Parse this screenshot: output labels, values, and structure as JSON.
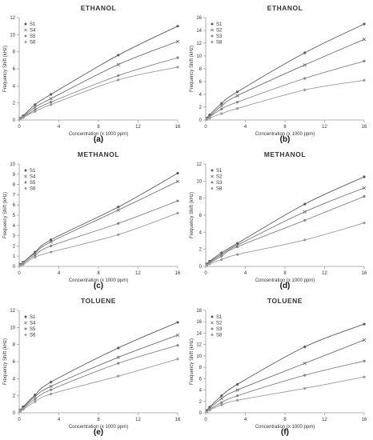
{
  "figure": {
    "title": "",
    "subtitle": ""
  },
  "chart_data": [
    {
      "type": "scatter",
      "title": "ETHANOL",
      "panel_label": "(a)",
      "xlabel": "Concentration (x 1000 ppm)",
      "ylabel": "Frequency Shift (kHz)",
      "xlim": [
        0,
        16
      ],
      "ylim": [
        0,
        12
      ],
      "xticks": [
        0,
        4,
        8,
        12,
        16
      ],
      "yticks": [
        0,
        2,
        4,
        6,
        8,
        10,
        12
      ],
      "legend": "top-left",
      "grid": false,
      "fit": "curve",
      "series": [
        {
          "name": "S1",
          "x": [
            0,
            0.1,
            0.4,
            1.6,
            3.2,
            10,
            16
          ],
          "y": [
            0,
            0.2,
            0.5,
            1.8,
            3.0,
            7.6,
            11.0
          ]
        },
        {
          "name": "S4",
          "x": [
            0,
            0.1,
            0.4,
            1.6,
            3.2,
            10,
            16
          ],
          "y": [
            0,
            0.2,
            0.4,
            1.5,
            2.5,
            6.5,
            9.2
          ]
        },
        {
          "name": "S5",
          "x": [
            0,
            0.1,
            0.4,
            1.6,
            3.2,
            10,
            16
          ],
          "y": [
            0,
            0.1,
            0.3,
            1.2,
            2.1,
            5.2,
            7.3
          ]
        },
        {
          "name": "S6",
          "x": [
            0,
            0.1,
            0.4,
            1.6,
            3.2,
            10,
            16
          ],
          "y": [
            0,
            0.1,
            0.3,
            1.0,
            1.8,
            4.7,
            6.2
          ]
        }
      ]
    },
    {
      "type": "scatter",
      "title": "ETHANOL",
      "panel_label": "(b)",
      "xlabel": "Concentration (x 1000 ppm)",
      "ylabel": "Frequency Shift (kHz)",
      "xlim": [
        0,
        16
      ],
      "ylim": [
        0,
        16
      ],
      "xticks": [
        0,
        4,
        8,
        12,
        16
      ],
      "yticks": [
        0,
        2,
        4,
        6,
        8,
        10,
        12,
        14,
        16
      ],
      "legend": "top-left",
      "grid": false,
      "fit": "curve",
      "series": [
        {
          "name": "S1",
          "x": [
            0,
            0.1,
            0.4,
            1.6,
            3.2,
            10,
            16
          ],
          "y": [
            0,
            0.3,
            0.8,
            2.6,
            4.4,
            10.5,
            15.0
          ]
        },
        {
          "name": "S2",
          "x": [
            0,
            0.1,
            0.4,
            1.6,
            3.2,
            10,
            16
          ],
          "y": [
            0,
            0.2,
            0.6,
            2.2,
            3.8,
            8.6,
            12.6
          ]
        },
        {
          "name": "S3",
          "x": [
            0,
            0.1,
            0.4,
            1.6,
            3.2,
            10,
            16
          ],
          "y": [
            0,
            0.2,
            0.5,
            1.7,
            2.8,
            6.5,
            9.2
          ]
        },
        {
          "name": "S8",
          "x": [
            0,
            0.1,
            0.4,
            1.6,
            3.2,
            10,
            16
          ],
          "y": [
            0,
            0.1,
            0.3,
            1.0,
            1.8,
            4.7,
            6.2
          ]
        }
      ]
    },
    {
      "type": "scatter",
      "title": "METHANOL",
      "panel_label": "(c)",
      "xlabel": "Concentration (x 1000 ppm)",
      "ylabel": "Frequency Shift (kHz)",
      "xlim": [
        0,
        16
      ],
      "ylim": [
        0,
        10
      ],
      "xticks": [
        0,
        4,
        8,
        12,
        16
      ],
      "yticks": [
        0,
        1,
        2,
        3,
        4,
        5,
        6,
        7,
        8,
        9,
        10
      ],
      "legend": "top-left",
      "grid": false,
      "fit": "curve",
      "series": [
        {
          "name": "S1",
          "x": [
            0,
            0.1,
            0.4,
            1.6,
            3.2,
            10,
            16
          ],
          "y": [
            0,
            0.2,
            0.4,
            1.4,
            2.6,
            5.8,
            9.1
          ]
        },
        {
          "name": "S4",
          "x": [
            0,
            0.1,
            0.4,
            1.6,
            3.2,
            10,
            16
          ],
          "y": [
            0,
            0.2,
            0.4,
            1.3,
            2.4,
            5.5,
            8.3
          ]
        },
        {
          "name": "S5",
          "x": [
            0,
            0.1,
            0.4,
            1.6,
            3.2,
            10,
            16
          ],
          "y": [
            0,
            0.1,
            0.3,
            1.1,
            2.0,
            4.2,
            6.4
          ]
        },
        {
          "name": "S6",
          "x": [
            0,
            0.1,
            0.4,
            1.6,
            3.2,
            10,
            16
          ],
          "y": [
            0,
            0.1,
            0.2,
            0.9,
            1.4,
            3.1,
            5.2
          ]
        }
      ]
    },
    {
      "type": "scatter",
      "title": "METHANOL",
      "panel_label": "(d)",
      "xlabel": "Concentration (x 1000 ppm)",
      "ylabel": "Frequency Shift (kHz)",
      "xlim": [
        0,
        16
      ],
      "ylim": [
        0,
        12
      ],
      "xticks": [
        0,
        4,
        8,
        12,
        16
      ],
      "yticks": [
        0,
        2,
        4,
        6,
        8,
        10,
        12
      ],
      "legend": "top-left",
      "grid": false,
      "fit": "curve",
      "series": [
        {
          "name": "S1",
          "x": [
            0,
            0.1,
            0.4,
            1.6,
            3.2,
            10,
            16
          ],
          "y": [
            0,
            0.3,
            0.6,
            1.6,
            2.7,
            7.3,
            10.5
          ]
        },
        {
          "name": "S2",
          "x": [
            0,
            0.1,
            0.4,
            1.6,
            3.2,
            10,
            16
          ],
          "y": [
            0,
            0.2,
            0.5,
            1.4,
            2.5,
            6.4,
            9.2
          ]
        },
        {
          "name": "S3",
          "x": [
            0,
            0.1,
            0.4,
            1.6,
            3.2,
            10,
            16
          ],
          "y": [
            0,
            0.2,
            0.4,
            1.2,
            2.3,
            5.4,
            8.2
          ]
        },
        {
          "name": "S8",
          "x": [
            0,
            0.1,
            0.4,
            1.6,
            3.2,
            10,
            16
          ],
          "y": [
            0,
            0.1,
            0.3,
            0.8,
            1.4,
            3.1,
            5.1
          ]
        }
      ]
    },
    {
      "type": "scatter",
      "title": "TOLUENE",
      "panel_label": "(e)",
      "xlabel": "Concentration (x 1000 ppm)",
      "ylabel": "Frequency Shift (kHz)",
      "xlim": [
        0,
        16
      ],
      "ylim": [
        0,
        12
      ],
      "xticks": [
        0,
        4,
        8,
        12,
        16
      ],
      "yticks": [
        0,
        2,
        4,
        6,
        8,
        10,
        12
      ],
      "legend": "top-left",
      "grid": false,
      "fit": "curve",
      "series": [
        {
          "name": "S1",
          "x": [
            0,
            0.1,
            0.4,
            1.6,
            3.2,
            10,
            16
          ],
          "y": [
            0,
            0.3,
            0.7,
            2.1,
            3.6,
            7.6,
            10.6
          ]
        },
        {
          "name": "S4",
          "x": [
            0,
            0.1,
            0.4,
            1.6,
            3.2,
            10,
            16
          ],
          "y": [
            0,
            0.3,
            0.6,
            1.9,
            3.1,
            6.5,
            9.1
          ]
        },
        {
          "name": "S5",
          "x": [
            0,
            0.1,
            0.4,
            1.6,
            3.2,
            10,
            16
          ],
          "y": [
            0,
            0.2,
            0.5,
            1.6,
            2.7,
            5.8,
            7.9
          ]
        },
        {
          "name": "S6",
          "x": [
            0,
            0.1,
            0.4,
            1.6,
            3.2,
            10,
            16
          ],
          "y": [
            0,
            0.2,
            0.4,
            1.3,
            2.2,
            4.3,
            6.3
          ]
        }
      ]
    },
    {
      "type": "scatter",
      "title": "TOLUENE",
      "panel_label": "(f)",
      "xlabel": "Concentration (x 1000 ppm)",
      "ylabel": "Frequency Shift (kHz)",
      "xlim": [
        0,
        16
      ],
      "ylim": [
        0,
        18
      ],
      "xticks": [
        0,
        4,
        8,
        12,
        16
      ],
      "yticks": [
        0,
        2,
        4,
        6,
        8,
        10,
        12,
        14,
        16,
        18
      ],
      "legend": "top-left",
      "grid": false,
      "fit": "curve",
      "series": [
        {
          "name": "S1",
          "x": [
            0,
            0.1,
            0.4,
            1.6,
            3.2,
            10,
            16
          ],
          "y": [
            0,
            0.4,
            1.0,
            3.0,
            5.0,
            11.6,
            15.6
          ]
        },
        {
          "name": "S2",
          "x": [
            0,
            0.1,
            0.4,
            1.6,
            3.2,
            10,
            16
          ],
          "y": [
            0,
            0.3,
            0.8,
            2.5,
            4.0,
            8.7,
            12.8
          ]
        },
        {
          "name": "S3",
          "x": [
            0,
            0.1,
            0.4,
            1.6,
            3.2,
            10,
            16
          ],
          "y": [
            0,
            0.2,
            0.6,
            1.8,
            3.0,
            6.6,
            9.1
          ]
        },
        {
          "name": "S8",
          "x": [
            0,
            0.1,
            0.4,
            1.6,
            3.2,
            10,
            16
          ],
          "y": [
            0,
            0.2,
            0.5,
            1.4,
            2.2,
            4.3,
            6.3
          ]
        }
      ]
    }
  ],
  "style": {
    "axis_color": "#9a9a9a",
    "text_color": "#333333",
    "series_colors": [
      "#5a5a5a",
      "#6f6f6f",
      "#848484",
      "#9a9a9a"
    ],
    "series_markers": [
      "dot",
      "cross",
      "dot",
      "dot"
    ]
  }
}
